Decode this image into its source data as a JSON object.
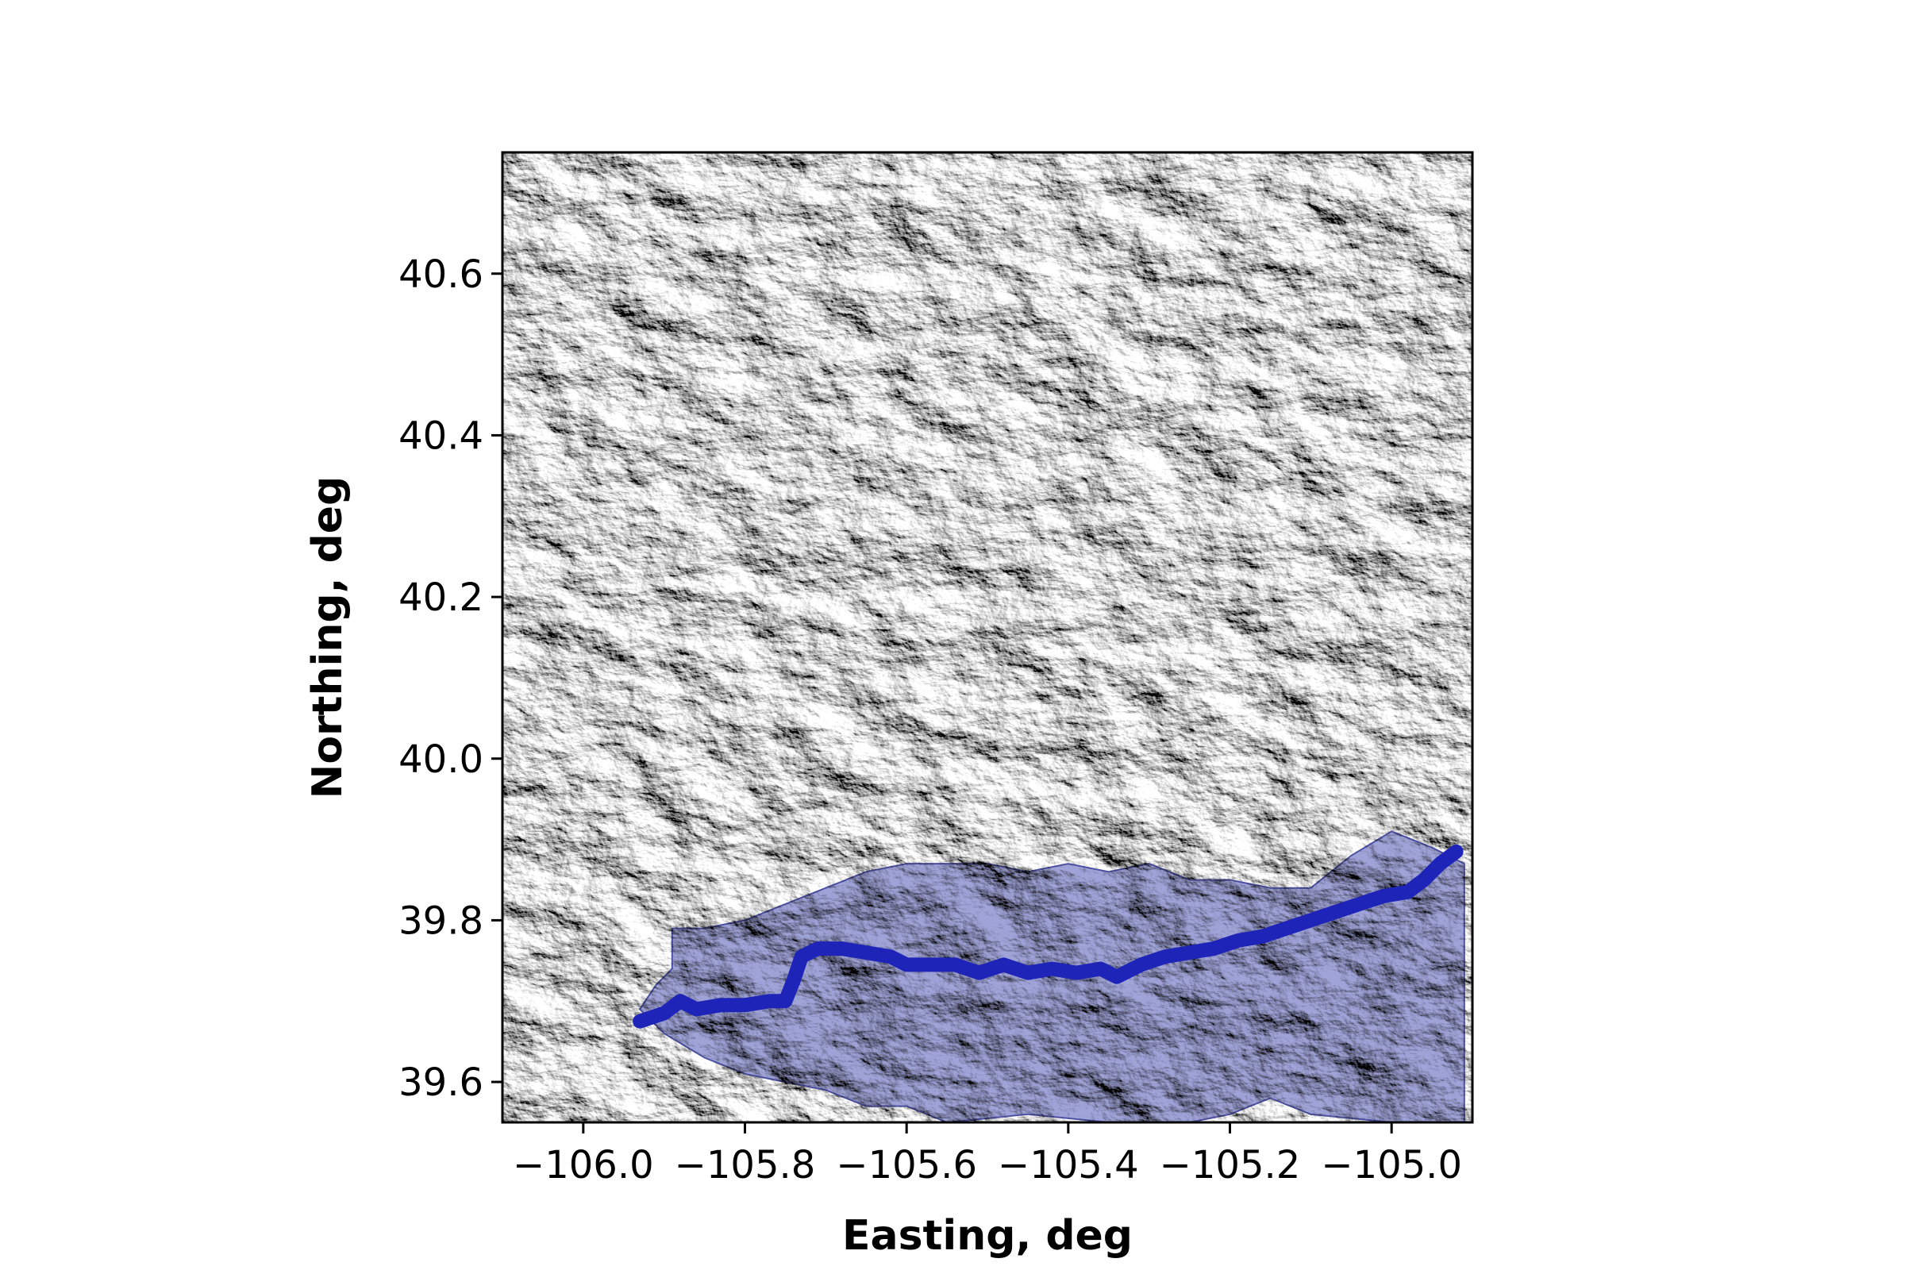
{
  "chart_data": {
    "type": "map",
    "xlabel": "Easting, deg",
    "ylabel": "Northing, deg",
    "xlim": [
      -106.1,
      -104.9
    ],
    "ylim": [
      39.55,
      40.75
    ],
    "xticks": [
      -106.0,
      -105.8,
      -105.6,
      -105.4,
      -105.2,
      -105.0
    ],
    "xtick_labels": [
      "−106.0",
      "−105.8",
      "−105.6",
      "−105.4",
      "−105.2",
      "−105.0"
    ],
    "yticks": [
      39.6,
      39.8,
      40.0,
      40.2,
      40.4,
      40.6
    ],
    "ytick_labels": [
      "39.6",
      "39.8",
      "40.0",
      "40.2",
      "40.4",
      "40.6"
    ],
    "basemap": "grayscale hillshade relief",
    "watershed_polygon": {
      "fill_color": "#7f84c9",
      "fill_opacity": 0.75,
      "edge_color": "#4e52a6",
      "coords": [
        [
          -105.93,
          39.69
        ],
        [
          -105.91,
          39.72
        ],
        [
          -105.89,
          39.74
        ],
        [
          -105.89,
          39.79
        ],
        [
          -105.85,
          39.79
        ],
        [
          -105.8,
          39.8
        ],
        [
          -105.75,
          39.82
        ],
        [
          -105.7,
          39.84
        ],
        [
          -105.65,
          39.86
        ],
        [
          -105.6,
          39.87
        ],
        [
          -105.55,
          39.87
        ],
        [
          -105.5,
          39.87
        ],
        [
          -105.45,
          39.86
        ],
        [
          -105.4,
          39.87
        ],
        [
          -105.35,
          39.86
        ],
        [
          -105.3,
          39.87
        ],
        [
          -105.25,
          39.85
        ],
        [
          -105.2,
          39.85
        ],
        [
          -105.15,
          39.84
        ],
        [
          -105.1,
          39.84
        ],
        [
          -105.05,
          39.88
        ],
        [
          -105.0,
          39.91
        ],
        [
          -104.95,
          39.89
        ],
        [
          -104.91,
          39.87
        ],
        [
          -104.91,
          39.55
        ],
        [
          -105.0,
          39.55
        ],
        [
          -105.1,
          39.56
        ],
        [
          -105.15,
          39.58
        ],
        [
          -105.2,
          39.56
        ],
        [
          -105.25,
          39.55
        ],
        [
          -105.35,
          39.55
        ],
        [
          -105.45,
          39.56
        ],
        [
          -105.55,
          39.55
        ],
        [
          -105.6,
          39.57
        ],
        [
          -105.65,
          39.57
        ],
        [
          -105.7,
          39.59
        ],
        [
          -105.75,
          39.6
        ],
        [
          -105.8,
          39.61
        ],
        [
          -105.85,
          39.63
        ],
        [
          -105.9,
          39.66
        ]
      ]
    },
    "river_line": {
      "color": "#1f24b8",
      "coords": [
        [
          -105.93,
          39.675
        ],
        [
          -105.9,
          39.685
        ],
        [
          -105.88,
          39.7
        ],
        [
          -105.86,
          39.69
        ],
        [
          -105.83,
          39.695
        ],
        [
          -105.8,
          39.695
        ],
        [
          -105.77,
          39.7
        ],
        [
          -105.75,
          39.7
        ],
        [
          -105.74,
          39.725
        ],
        [
          -105.73,
          39.755
        ],
        [
          -105.71,
          39.765
        ],
        [
          -105.68,
          39.765
        ],
        [
          -105.65,
          39.76
        ],
        [
          -105.62,
          39.755
        ],
        [
          -105.6,
          39.745
        ],
        [
          -105.57,
          39.745
        ],
        [
          -105.54,
          39.745
        ],
        [
          -105.51,
          39.735
        ],
        [
          -105.48,
          39.745
        ],
        [
          -105.45,
          39.735
        ],
        [
          -105.42,
          39.74
        ],
        [
          -105.39,
          39.735
        ],
        [
          -105.36,
          39.74
        ],
        [
          -105.34,
          39.73
        ],
        [
          -105.31,
          39.745
        ],
        [
          -105.28,
          39.755
        ],
        [
          -105.25,
          39.76
        ],
        [
          -105.22,
          39.765
        ],
        [
          -105.19,
          39.775
        ],
        [
          -105.16,
          39.78
        ],
        [
          -105.13,
          39.79
        ],
        [
          -105.1,
          39.8
        ],
        [
          -105.07,
          39.81
        ],
        [
          -105.04,
          39.82
        ],
        [
          -105.01,
          39.83
        ],
        [
          -104.98,
          39.835
        ],
        [
          -104.96,
          39.85
        ],
        [
          -104.94,
          39.87
        ],
        [
          -104.92,
          39.885
        ]
      ]
    }
  }
}
